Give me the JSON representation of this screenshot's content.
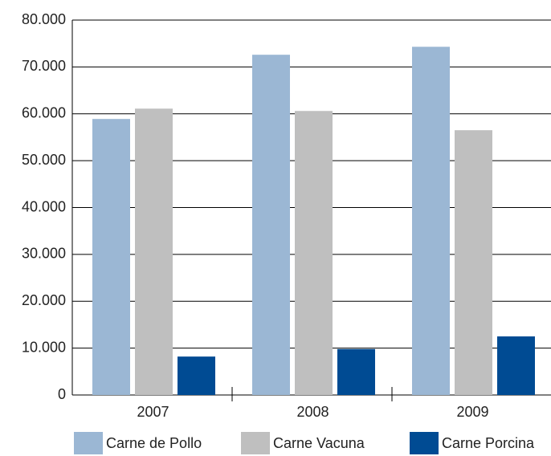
{
  "chart_data": {
    "type": "bar",
    "categories": [
      "2007",
      "2008",
      "2009"
    ],
    "series": [
      {
        "name": "Carne de Pollo",
        "color": "#9bb7d4",
        "values": [
          58900,
          72600,
          74300
        ]
      },
      {
        "name": "Carne Vacuna",
        "color": "#bfbfbf",
        "values": [
          61100,
          60600,
          56500
        ]
      },
      {
        "name": "Carne Porcina",
        "color": "#004b93",
        "values": [
          8200,
          9800,
          12500
        ]
      }
    ],
    "ylim": [
      0,
      80000
    ],
    "yticks": [
      0,
      {
        "value": 10000,
        "label": "10.000"
      },
      {
        "value": 20000,
        "label": "20.000"
      },
      {
        "value": 30000,
        "label": "30.000"
      },
      {
        "value": 40000,
        "label": "40.000"
      },
      {
        "value": 50000,
        "label": "50.000"
      },
      {
        "value": 60000,
        "label": "60.000"
      },
      {
        "value": 70000,
        "label": "70.000"
      },
      {
        "value": 80000,
        "label": "80.000"
      }
    ],
    "grid": true,
    "legend": "bottom"
  }
}
